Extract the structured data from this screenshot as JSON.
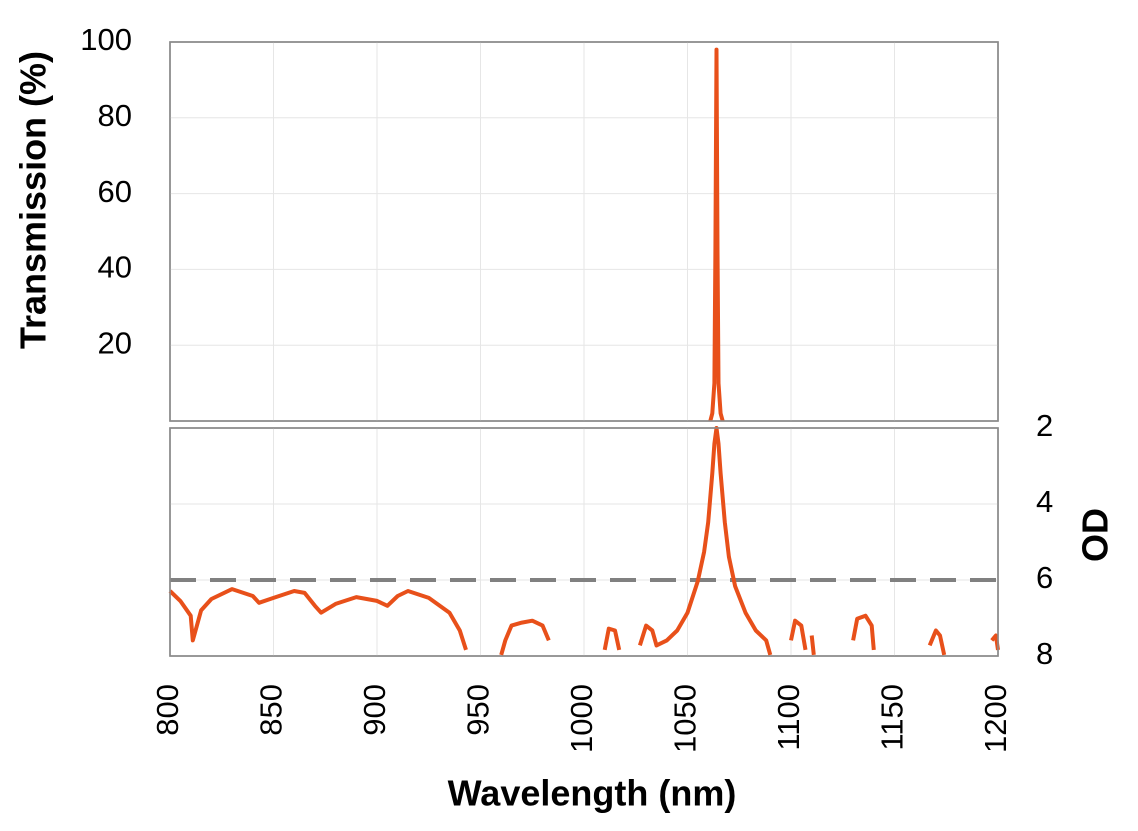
{
  "chart_data": [
    {
      "type": "line",
      "ylabel": "Transmission (%)",
      "ylim": [
        0,
        100
      ],
      "yticks": [
        20,
        40,
        60,
        80,
        100
      ],
      "grid": true,
      "series": [
        {
          "color": "#e8501a",
          "x": [
            1061,
            1062,
            1063,
            1063.5,
            1064,
            1064.5,
            1065,
            1066,
            1067
          ],
          "values": [
            0,
            2,
            10,
            45,
            98,
            45,
            10,
            2,
            0
          ]
        }
      ]
    },
    {
      "type": "line",
      "xlabel": "Wavelength (nm)",
      "ylabel": "OD",
      "xlim": [
        800,
        1200
      ],
      "xticks": [
        800,
        850,
        900,
        950,
        1000,
        1050,
        1100,
        1150,
        1200
      ],
      "ylim": [
        8,
        2
      ],
      "yticks": [
        2,
        4,
        6,
        8
      ],
      "grid": true,
      "hlines": [
        6
      ],
      "hline_color": "#808080",
      "series": [
        {
          "color": "#e8501a",
          "x": [
            800,
            805,
            810,
            811,
            813,
            815,
            820,
            830,
            840,
            843,
            850,
            860,
            865,
            870,
            873,
            880,
            890,
            900,
            905,
            910,
            915,
            925,
            935,
            940,
            943,
            950,
            960,
            962,
            965,
            970,
            975,
            980,
            983,
            995,
            1010,
            1012,
            1015,
            1017,
            1022,
            1027,
            1030,
            1033,
            1035,
            1040,
            1045,
            1050,
            1055,
            1058,
            1060,
            1062,
            1063,
            1064,
            1065,
            1066,
            1068,
            1070,
            1073,
            1078,
            1083,
            1088,
            1090,
            1095,
            1100,
            1102,
            1105,
            1107,
            1108,
            1110,
            1111,
            1120,
            1130,
            1132,
            1136,
            1139,
            1140,
            1150,
            1167,
            1170,
            1172,
            1174,
            1185,
            1197,
            1199,
            1200
          ],
          "values": [
            6.29,
            6.55,
            6.94,
            7.59,
            7.2,
            6.8,
            6.5,
            6.24,
            6.42,
            6.6,
            6.47,
            6.29,
            6.34,
            6.68,
            6.86,
            6.63,
            6.45,
            6.55,
            6.68,
            6.42,
            6.29,
            6.47,
            6.86,
            7.33,
            7.84,
            null,
            7.97,
            7.59,
            7.2,
            7.12,
            7.07,
            7.2,
            7.59,
            null,
            7.84,
            7.28,
            7.33,
            7.84,
            null,
            7.72,
            7.2,
            7.33,
            7.72,
            7.59,
            7.33,
            6.86,
            6.03,
            5.26,
            4.48,
            3.19,
            2.41,
            2.0,
            2.41,
            3.19,
            4.48,
            5.39,
            6.16,
            6.86,
            7.33,
            7.59,
            7.97,
            null,
            7.59,
            7.07,
            7.2,
            7.84,
            null,
            7.46,
            7.97,
            null,
            7.59,
            7.02,
            6.94,
            7.2,
            7.84,
            null,
            7.72,
            7.33,
            7.46,
            7.97,
            null,
            7.59,
            7.46,
            7.84
          ]
        }
      ]
    }
  ]
}
